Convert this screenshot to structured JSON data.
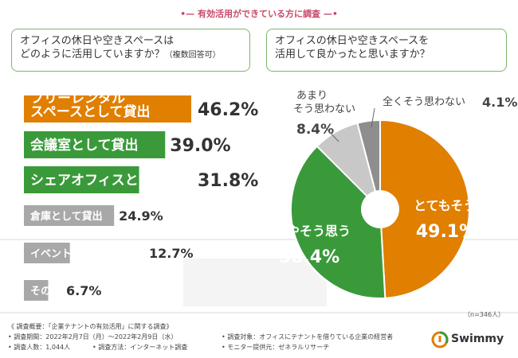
{
  "header": {
    "title": "有効活用ができている方に調査"
  },
  "left_question": {
    "line1": "オフィスの休日や空きスペースは",
    "line2": "どのように活用していますか？",
    "note": "（複数回答可）"
  },
  "right_question": {
    "line1": "オフィスの休日や空きスペースを",
    "line2": "活用して良かったと思いますか？"
  },
  "sample_note": "（n=346人）",
  "chart_data": [
    {
      "type": "bar",
      "orientation": "horizontal",
      "categories": [
        "フリーレンタル スペースとして貸出",
        "会議室として貸出",
        "シェアオフィスとして貸出",
        "倉庫として貸出",
        "イベント会場として貸出",
        "その他"
      ],
      "values": [
        46.2,
        39.0,
        31.8,
        24.9,
        12.7,
        6.7
      ],
      "value_labels": [
        "46.2%",
        "39.0%",
        "31.8%",
        "24.9%",
        "12.7%",
        "6.7%"
      ],
      "unit": "%",
      "colors": [
        "#e07f00",
        "#3a9a3a",
        "#3a9a3a",
        "#a8a8a8",
        "#a8a8a8",
        "#a8a8a8"
      ]
    },
    {
      "type": "pie",
      "categories": [
        "とてもそう思う",
        "ややそう思う",
        "あまり そう思わない",
        "全くそう思わない"
      ],
      "values": [
        49.1,
        38.4,
        8.4,
        4.1
      ],
      "value_labels": [
        "49.1%",
        "38.4%",
        "8.4%",
        "4.1%"
      ],
      "colors": [
        "#e07f00",
        "#3a9a3a",
        "#c8c8c8",
        "#8e8e8e"
      ]
    }
  ],
  "footer": {
    "line1": "《 調査概要：「企業テナントの有効活用」に関する調査》",
    "period": "• 調査期間：2022年2月7日（月）～2022年2月9日（水）",
    "count": "• 調査人数：1,044人",
    "method": "• 調査方法：インターネット調査",
    "target": "• 調査対象：オフィスにテナントを借りている企業の経営者",
    "provider": "• モニター提供元：ゼネラルリサーチ"
  },
  "logo": {
    "text": "Swimmy"
  },
  "colors": {
    "orange": "#e07f00",
    "green": "#3a9a3a",
    "gray": "#a8a8a8",
    "pink": "#c94a6a"
  }
}
